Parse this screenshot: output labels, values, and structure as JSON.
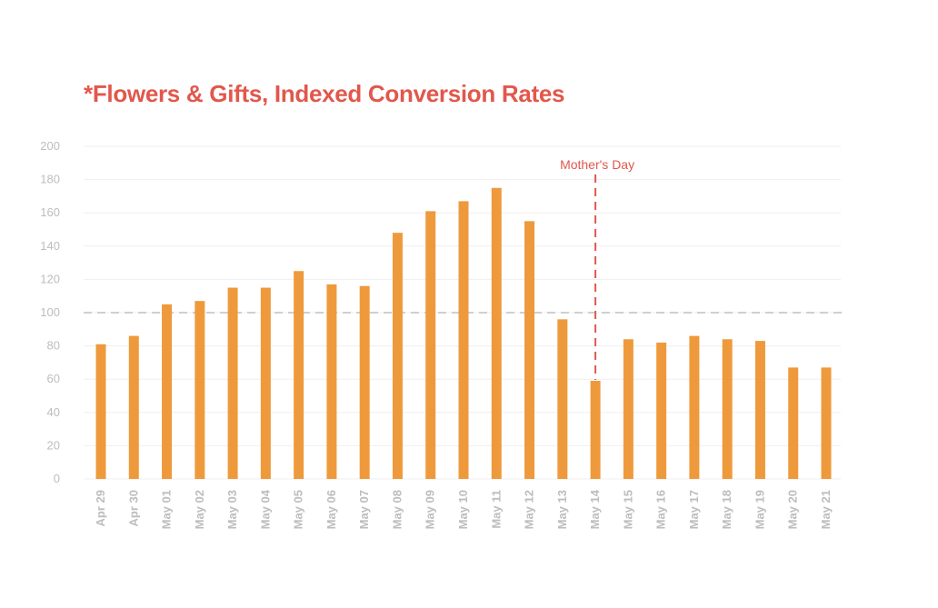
{
  "colors": {
    "bar": "#ee9a3c",
    "title": "#e2574c",
    "annotation": "#e2574c",
    "reference_line": "#cfcfcf",
    "grid": "#efefef",
    "tick_text": "#bdbdbd"
  },
  "chart_data": {
    "type": "bar",
    "title": "*Flowers & Gifts, Indexed Conversion Rates",
    "xlabel": "",
    "ylabel": "",
    "ylim": [
      0,
      200
    ],
    "yticks": [
      0,
      20,
      40,
      60,
      80,
      100,
      120,
      140,
      160,
      180,
      200
    ],
    "grid": true,
    "categories": [
      "Apr 29",
      "Apr 30",
      "May 01",
      "May 02",
      "May 03",
      "May 04",
      "May 05",
      "May 06",
      "May 07",
      "May 08",
      "May 09",
      "May 10",
      "May 11",
      "May 12",
      "May 13",
      "May 14",
      "May 15",
      "May 16",
      "May 17",
      "May 18",
      "May 19",
      "May 20",
      "May 21"
    ],
    "values": [
      81,
      86,
      105,
      107,
      115,
      115,
      125,
      117,
      116,
      148,
      161,
      167,
      175,
      155,
      96,
      59,
      84,
      82,
      86,
      84,
      83,
      67,
      67
    ],
    "reference_line": {
      "y": 100,
      "style": "dashed"
    },
    "annotations": [
      {
        "text": "Mother's Day",
        "category": "May 14",
        "style": "dashed-vertical"
      }
    ]
  }
}
